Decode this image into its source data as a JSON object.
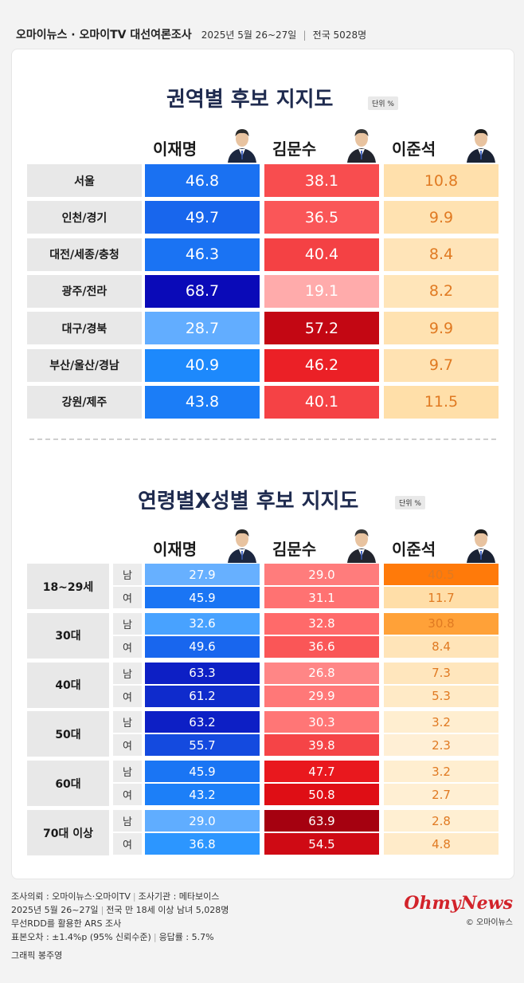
{
  "header": {
    "brand": "오마이뉴스 · 오마이TV  대선여론조사",
    "date": "2025년 5월 26~27일",
    "scope": "전국 5028명"
  },
  "region_section": {
    "title": "권역별 후보 지지도",
    "unit": "단위 %"
  },
  "age_section": {
    "title": "연령별X성별 후보 지지도",
    "unit": "단위 %"
  },
  "candidates": [
    {
      "name": "이재명",
      "color": "#1a6ef0"
    },
    {
      "name": "김문수",
      "color": "#e8333b"
    },
    {
      "name": "이준석",
      "color": "#f5a03c"
    }
  ],
  "chart_data": [
    {
      "type": "table",
      "title": "권역별 후보 지지도",
      "series_names": [
        "이재명",
        "김문수",
        "이준석"
      ],
      "rows": [
        {
          "label": "서울",
          "values": [
            "46.8",
            "38.1",
            "10.8"
          ]
        },
        {
          "label": "인천/경기",
          "values": [
            "49.7",
            "36.5",
            "9.9"
          ]
        },
        {
          "label": "대전/세종/충청",
          "values": [
            "46.3",
            "40.4",
            "8.4"
          ]
        },
        {
          "label": "광주/전라",
          "values": [
            "68.7",
            "19.1",
            "8.2"
          ]
        },
        {
          "label": "대구/경북",
          "values": [
            "28.7",
            "57.2",
            "9.9"
          ]
        },
        {
          "label": "부산/울산/경남",
          "values": [
            "40.9",
            "46.2",
            "9.7"
          ]
        },
        {
          "label": "강원/제주",
          "values": [
            "43.8",
            "40.1",
            "11.5"
          ]
        }
      ]
    },
    {
      "type": "table",
      "title": "연령별X성별 후보 지지도",
      "series_names": [
        "이재명",
        "김문수",
        "이준석"
      ],
      "groups": [
        {
          "label": "18~29세",
          "rows": [
            {
              "gender": "남",
              "values": [
                "27.9",
                "29.0",
                "40.5"
              ]
            },
            {
              "gender": "여",
              "values": [
                "45.9",
                "31.1",
                "11.7"
              ]
            }
          ]
        },
        {
          "label": "30대",
          "rows": [
            {
              "gender": "남",
              "values": [
                "32.6",
                "32.8",
                "30.8"
              ]
            },
            {
              "gender": "여",
              "values": [
                "49.6",
                "36.6",
                "8.4"
              ]
            }
          ]
        },
        {
          "label": "40대",
          "rows": [
            {
              "gender": "남",
              "values": [
                "63.3",
                "26.8",
                "7.3"
              ]
            },
            {
              "gender": "여",
              "values": [
                "61.2",
                "29.9",
                "5.3"
              ]
            }
          ]
        },
        {
          "label": "50대",
          "rows": [
            {
              "gender": "남",
              "values": [
                "63.2",
                "30.3",
                "3.2"
              ]
            },
            {
              "gender": "여",
              "values": [
                "55.7",
                "39.8",
                "2.3"
              ]
            }
          ]
        },
        {
          "label": "60대",
          "rows": [
            {
              "gender": "남",
              "values": [
                "45.9",
                "47.7",
                "3.2"
              ]
            },
            {
              "gender": "여",
              "values": [
                "43.2",
                "50.8",
                "2.7"
              ]
            }
          ]
        },
        {
          "label": "70대 이상",
          "rows": [
            {
              "gender": "남",
              "values": [
                "29.0",
                "63.9",
                "2.8"
              ]
            },
            {
              "gender": "여",
              "values": [
                "36.8",
                "54.5",
                "4.8"
              ]
            }
          ]
        }
      ]
    }
  ],
  "footer": {
    "line1_a": "조사의뢰 : 오마이뉴스·오마이TV",
    "line1_b": "조사기관 : 메타보이스",
    "line2_a": "2025년 5월 26~27일",
    "line2_b": "전국 만 18세 이상 남녀 5,028명",
    "line3": "무선RDD를 활용한 ARS 조사",
    "line4_a": "표본오차 : ±1.4%p (95% 신뢰수준)",
    "line4_b": "응답률 : 5.7%",
    "credit": "그래픽 봉주영"
  },
  "logo": {
    "mark": "OhmyNews",
    "copyright": "© 오마이뉴스"
  }
}
